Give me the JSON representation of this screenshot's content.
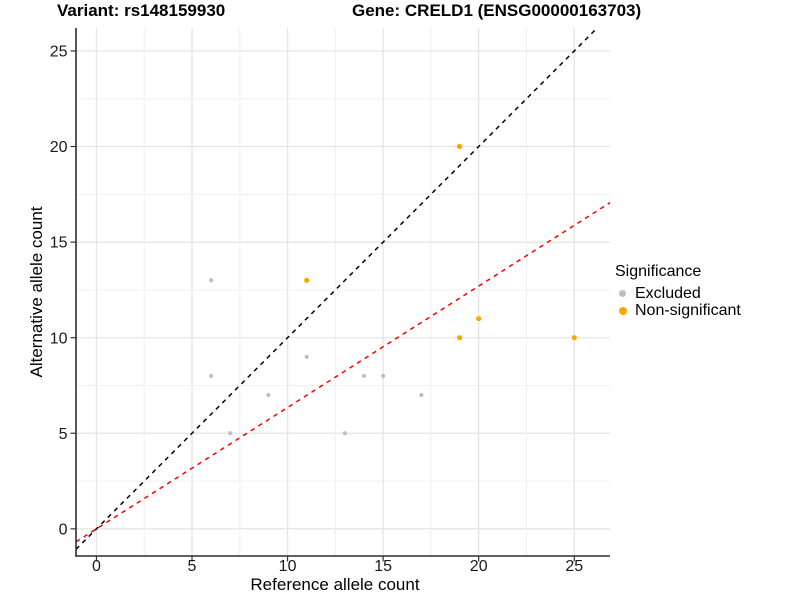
{
  "title": {
    "variant": "Variant: rs148159930",
    "gene": "Gene: CRELD1 (ENSG00000163703)"
  },
  "chart_data": {
    "type": "scatter",
    "xlabel": "Reference allele count",
    "ylabel": "Alternative allele count",
    "x_ticks": [
      0,
      5,
      10,
      15,
      20,
      25
    ],
    "y_ticks": [
      0,
      5,
      10,
      15,
      20,
      25
    ],
    "xlim": [
      -1.07,
      26.87
    ],
    "ylim": [
      -1.42,
      26.2
    ],
    "grid": {
      "major_step": 5,
      "minor_step": 2.5,
      "major_color": "#e4e4e4",
      "minor_color": "#f0f0f0"
    },
    "series": [
      {
        "name": "Excluded",
        "color": "#bebebe",
        "marker_radius": 2.1,
        "points": [
          [
            6,
            13
          ],
          [
            6,
            8
          ],
          [
            7,
            5
          ],
          [
            9,
            7
          ],
          [
            11,
            9
          ],
          [
            13,
            5
          ],
          [
            14,
            8
          ],
          [
            15,
            8
          ],
          [
            17,
            7
          ]
        ]
      },
      {
        "name": "Non-significant",
        "color": "#ffa500",
        "marker_radius": 2.6,
        "points": [
          [
            11,
            13
          ],
          [
            19,
            20
          ],
          [
            19,
            10
          ],
          [
            20,
            11
          ],
          [
            25,
            10
          ]
        ]
      }
    ],
    "lines": [
      {
        "name": "identity-line",
        "slope": 1,
        "intercept": 0,
        "color": "#000000",
        "dash": "4.5 4.5"
      },
      {
        "name": "expected-ratio-line",
        "slope": 0.635,
        "intercept": 0,
        "color": "#ff0000",
        "dash": "4.5 4.5"
      }
    ]
  },
  "legend": {
    "title": "Significance",
    "items": [
      {
        "label": "Excluded",
        "color": "#bebebe"
      },
      {
        "label": "Non-significant",
        "color": "#ffa500"
      }
    ]
  }
}
